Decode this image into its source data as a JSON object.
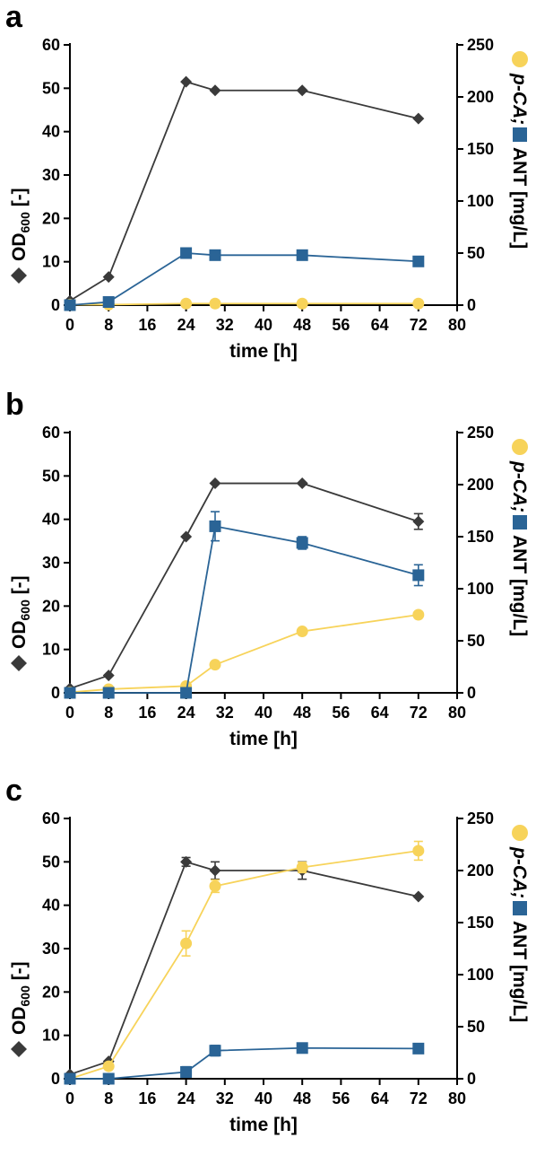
{
  "panels": [
    {
      "letter": "a",
      "xlabel": "time [h]",
      "ylabel_left": {
        "text": "OD",
        "sub": "600",
        "tail": " [-]"
      },
      "ylabel_right": {
        "pca": "p-CA;",
        "ant": "ANT [mg/L]"
      },
      "x_ticks": [
        "0",
        "8",
        "16",
        "24",
        "32",
        "40",
        "48",
        "56",
        "64",
        "72",
        "80"
      ],
      "y_left_ticks": [
        "0",
        "10",
        "20",
        "30",
        "40",
        "50",
        "60"
      ],
      "y_right_ticks": [
        "0",
        "50",
        "100",
        "150",
        "200",
        "250"
      ]
    },
    {
      "letter": "b",
      "xlabel": "time [h]",
      "ylabel_left": {
        "text": "OD",
        "sub": "600",
        "tail": " [-]"
      },
      "ylabel_right": {
        "pca": "p-CA;",
        "ant": "ANT [mg/L]"
      },
      "x_ticks": [
        "0",
        "8",
        "16",
        "24",
        "32",
        "40",
        "48",
        "56",
        "64",
        "72",
        "80"
      ],
      "y_left_ticks": [
        "0",
        "10",
        "20",
        "30",
        "40",
        "50",
        "60"
      ],
      "y_right_ticks": [
        "0",
        "50",
        "100",
        "150",
        "200",
        "250"
      ]
    },
    {
      "letter": "c",
      "xlabel": "time [h]",
      "ylabel_left": {
        "text": "OD",
        "sub": "600",
        "tail": " [-]"
      },
      "ylabel_right": {
        "pca": "p-CA;",
        "ant": "ANT [mg/L]"
      },
      "x_ticks": [
        "0",
        "8",
        "16",
        "24",
        "32",
        "40",
        "48",
        "56",
        "64",
        "72",
        "80"
      ],
      "y_left_ticks": [
        "0",
        "10",
        "20",
        "30",
        "40",
        "50",
        "60"
      ],
      "y_right_ticks": [
        "0",
        "50",
        "100",
        "150",
        "200",
        "250"
      ]
    }
  ],
  "colors": {
    "od": "#3a3a3a",
    "pca": "#f7d35a",
    "ant": "#2a6496"
  },
  "chart_data": [
    {
      "type": "line",
      "title": "a",
      "xlabel": "time [h]",
      "ylabel": "OD600 [-]",
      "y2label": "p-CA; ANT [mg/L]",
      "xlim": [
        0,
        80
      ],
      "ylim": [
        0,
        60
      ],
      "y2lim": [
        0,
        250
      ],
      "series": [
        {
          "marker": "diamond",
          "axis": "left",
          "x": [
            0,
            8,
            24,
            30,
            48,
            72
          ],
          "y": [
            1.0,
            6.5,
            51.5,
            49.5,
            49.5,
            43.0
          ],
          "err": [
            0,
            0,
            0,
            0,
            0,
            0
          ]
        },
        {
          "marker": "circle",
          "axis": "right",
          "x": [
            0,
            8,
            24,
            30,
            48,
            72
          ],
          "y": [
            0.5,
            0.5,
            1.5,
            1.5,
            1.5,
            1.5
          ],
          "err": [
            0,
            0,
            0,
            0,
            0,
            0
          ]
        },
        {
          "marker": "square",
          "axis": "right",
          "x": [
            0,
            8,
            24,
            30,
            48,
            72
          ],
          "y": [
            0,
            3,
            50,
            48,
            48,
            42
          ],
          "err": [
            0,
            0,
            0,
            0,
            0,
            0
          ]
        }
      ]
    },
    {
      "type": "line",
      "title": "b",
      "xlabel": "time [h]",
      "ylabel": "OD600 [-]",
      "y2label": "p-CA; ANT [mg/L]",
      "xlim": [
        0,
        80
      ],
      "ylim": [
        0,
        60
      ],
      "y2lim": [
        0,
        250
      ],
      "series": [
        {
          "marker": "diamond",
          "axis": "left",
          "x": [
            0,
            8,
            24,
            30,
            48,
            72
          ],
          "y": [
            1.0,
            4.0,
            36.0,
            48.3,
            48.3,
            39.5
          ],
          "err": [
            0,
            0,
            0,
            0,
            0,
            1.8
          ]
        },
        {
          "marker": "circle",
          "axis": "right",
          "x": [
            0,
            8,
            24,
            30,
            48,
            72
          ],
          "y": [
            0.5,
            3.5,
            6.5,
            27,
            59,
            75
          ],
          "err": [
            0,
            0,
            0,
            0,
            0,
            0
          ]
        },
        {
          "marker": "square",
          "axis": "right",
          "x": [
            0,
            8,
            24,
            30,
            48,
            72
          ],
          "y": [
            0,
            0,
            0,
            160,
            144,
            113
          ],
          "err": [
            0,
            0,
            0,
            14,
            6,
            10
          ]
        }
      ]
    },
    {
      "type": "line",
      "title": "c",
      "xlabel": "time [h]",
      "ylabel": "OD600 [-]",
      "y2label": "p-CA; ANT [mg/L]",
      "xlim": [
        0,
        80
      ],
      "ylim": [
        0,
        60
      ],
      "y2lim": [
        0,
        250
      ],
      "series": [
        {
          "marker": "diamond",
          "axis": "left",
          "x": [
            0,
            8,
            24,
            30,
            48,
            72
          ],
          "y": [
            1.0,
            4.0,
            50.0,
            48.0,
            48.0,
            42.0
          ],
          "err": [
            0,
            0,
            1.0,
            2.0,
            2.0,
            0
          ]
        },
        {
          "marker": "circle",
          "axis": "right",
          "x": [
            0,
            8,
            24,
            30,
            48,
            72
          ],
          "y": [
            0,
            12,
            130,
            185,
            203,
            219
          ],
          "err": [
            0,
            0,
            12,
            6,
            5,
            9
          ]
        },
        {
          "marker": "square",
          "axis": "right",
          "x": [
            0,
            8,
            24,
            30,
            48,
            72
          ],
          "y": [
            0,
            0,
            6.5,
            27,
            29.5,
            29
          ],
          "err": [
            0,
            0,
            5,
            5,
            3,
            3
          ]
        }
      ]
    }
  ]
}
